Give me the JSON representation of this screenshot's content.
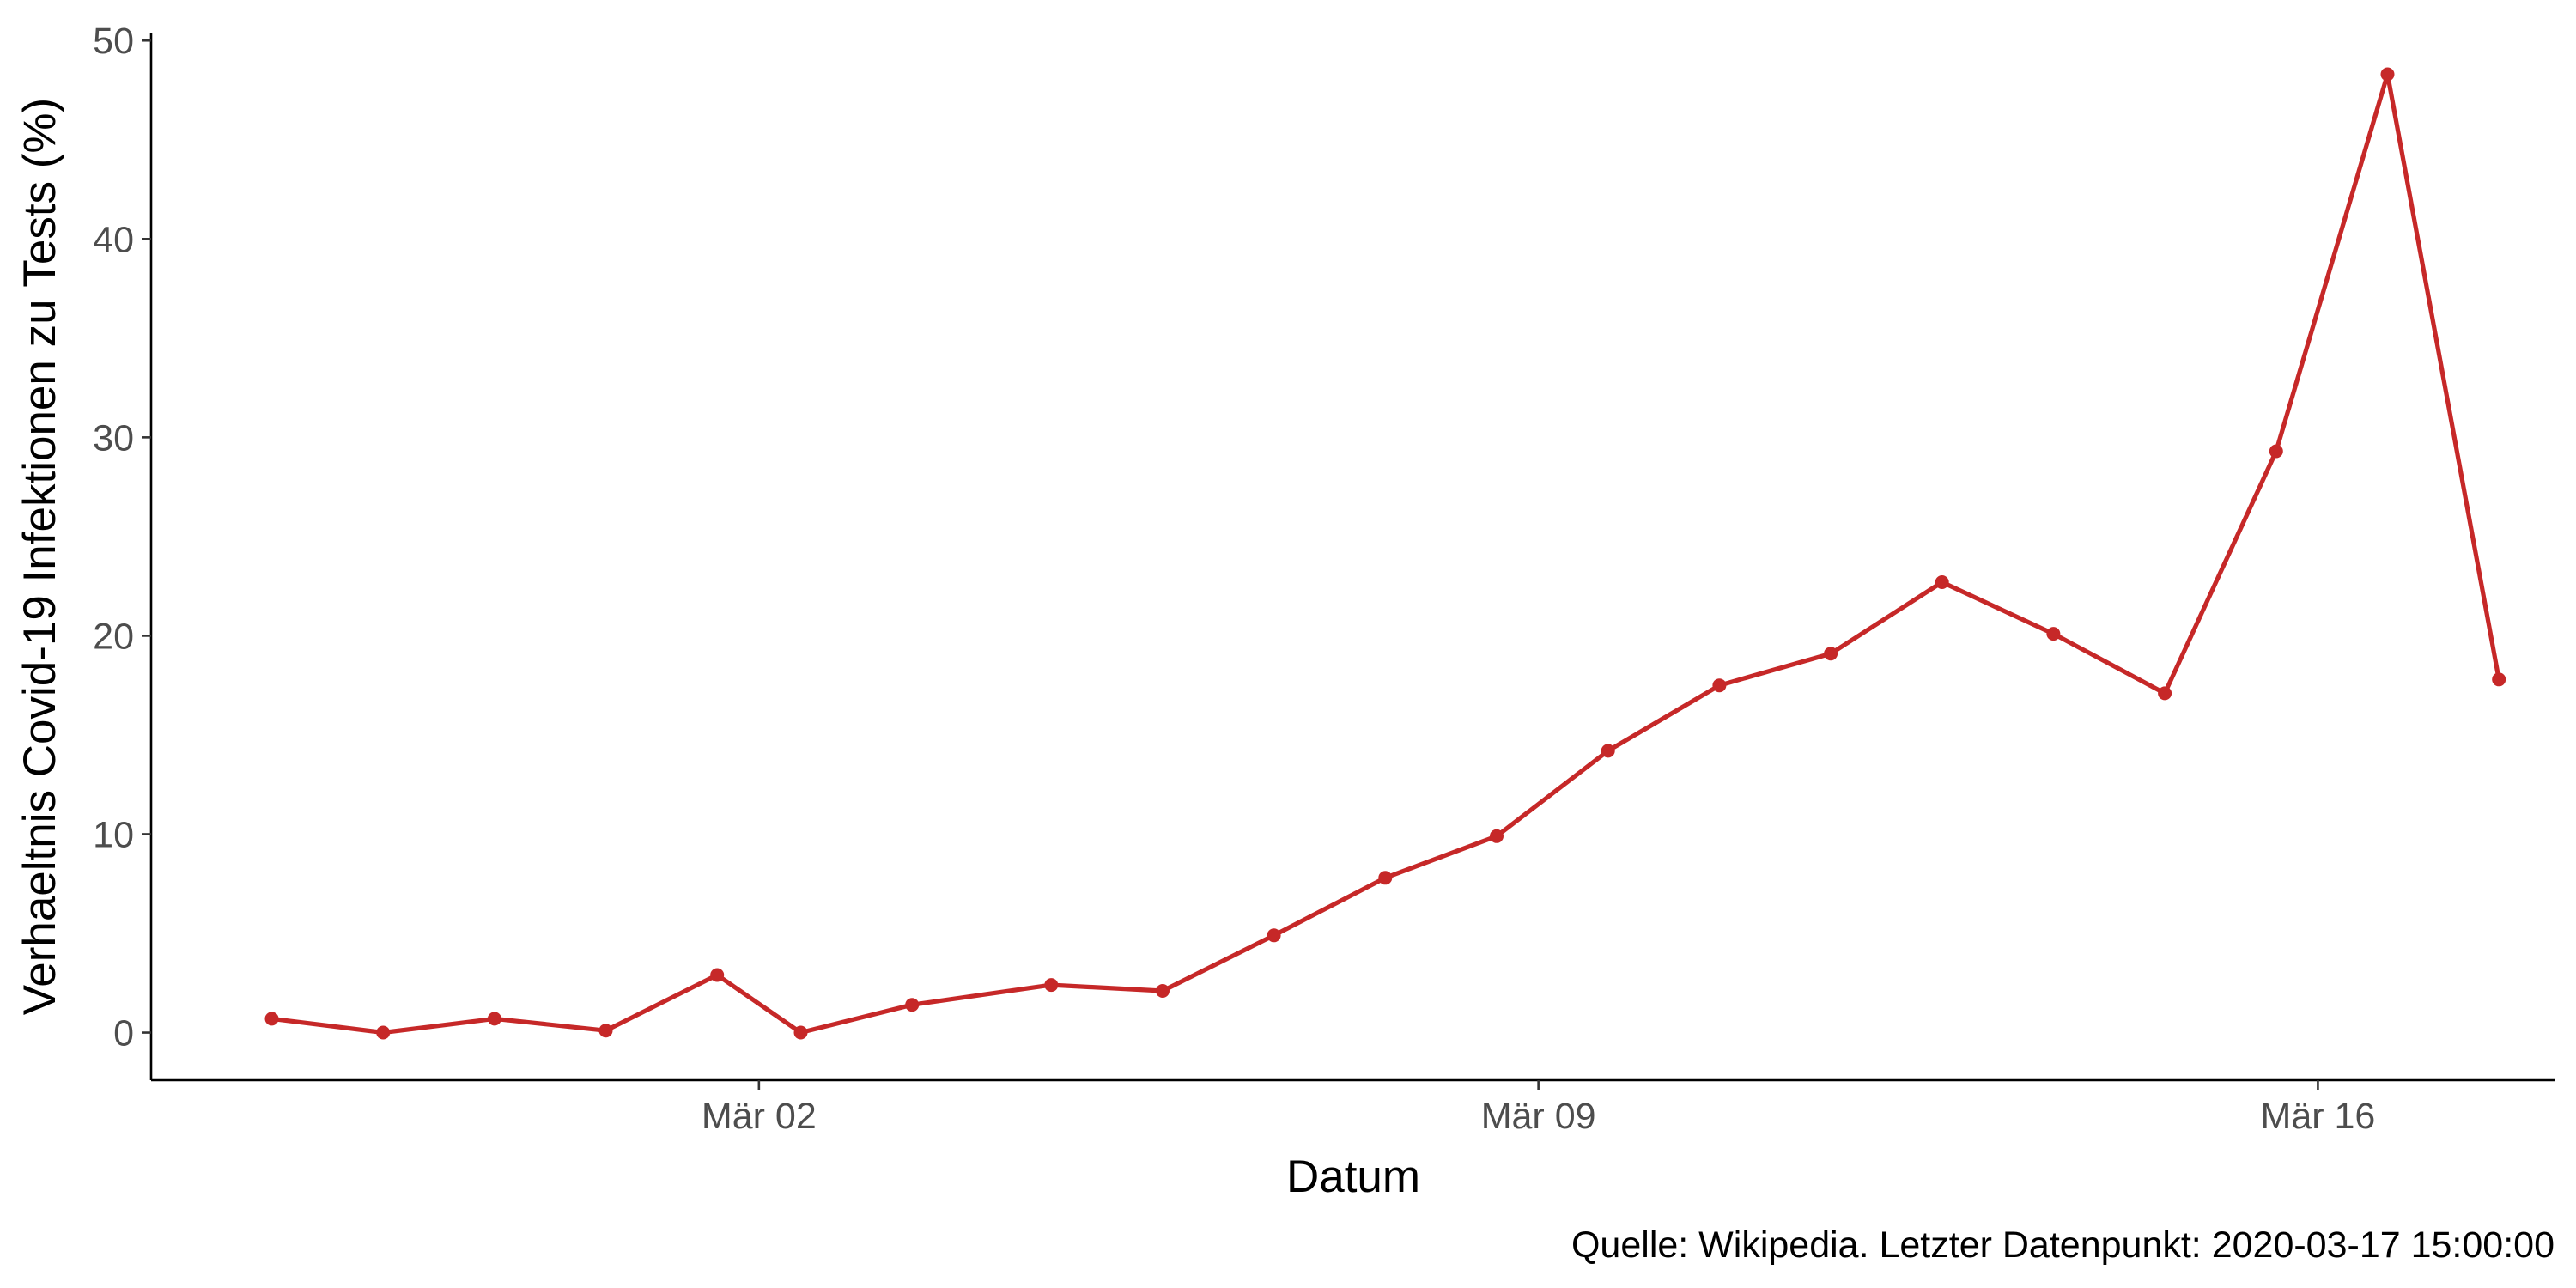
{
  "chart_data": {
    "type": "line",
    "xlabel": "Datum",
    "ylabel": "Verhaeltnis Covid-19 Infektionen zu Tests (%)",
    "caption": "Quelle: Wikipedia. Letzter Datenpunkt: 2020-03-17 15:00:00",
    "x_ticks": [
      {
        "date": "2020-03-02",
        "label": "Mär 02"
      },
      {
        "date": "2020-03-09",
        "label": "Mär 09"
      },
      {
        "date": "2020-03-16",
        "label": "Mär 16"
      }
    ],
    "y_ticks": [
      0,
      10,
      20,
      30,
      40,
      50
    ],
    "xlim": [
      "2020-02-25T13:00:00",
      "2020-03-18T03:00:00"
    ],
    "ylim": [
      -2.4,
      50.4
    ],
    "grid": false,
    "color": "#c62828",
    "series": [
      {
        "points": [
          {
            "x": "2020-02-26T15:00:00",
            "y": 0.7
          },
          {
            "x": "2020-02-27T15:00:00",
            "y": 0.0
          },
          {
            "x": "2020-02-28T15:00:00",
            "y": 0.7
          },
          {
            "x": "2020-02-29T15:00:00",
            "y": 0.1
          },
          {
            "x": "2020-03-01T15:00:00",
            "y": 2.9
          },
          {
            "x": "2020-03-02T09:00:00",
            "y": 0.0
          },
          {
            "x": "2020-03-03T09:00:00",
            "y": 1.4
          },
          {
            "x": "2020-03-04T15:00:00",
            "y": 2.4
          },
          {
            "x": "2020-03-05T15:00:00",
            "y": 2.1
          },
          {
            "x": "2020-03-06T15:00:00",
            "y": 4.9
          },
          {
            "x": "2020-03-07T15:00:00",
            "y": 7.8
          },
          {
            "x": "2020-03-08T15:00:00",
            "y": 9.9
          },
          {
            "x": "2020-03-09T15:00:00",
            "y": 14.2
          },
          {
            "x": "2020-03-10T15:00:00",
            "y": 17.5
          },
          {
            "x": "2020-03-11T15:00:00",
            "y": 19.1
          },
          {
            "x": "2020-03-12T15:00:00",
            "y": 22.7
          },
          {
            "x": "2020-03-13T15:00:00",
            "y": 20.1
          },
          {
            "x": "2020-03-14T15:00:00",
            "y": 17.1
          },
          {
            "x": "2020-03-15T15:00:00",
            "y": 29.3
          },
          {
            "x": "2020-03-16T15:00:00",
            "y": 48.3
          },
          {
            "x": "2020-03-17T15:00:00",
            "y": 17.8
          }
        ]
      }
    ]
  }
}
